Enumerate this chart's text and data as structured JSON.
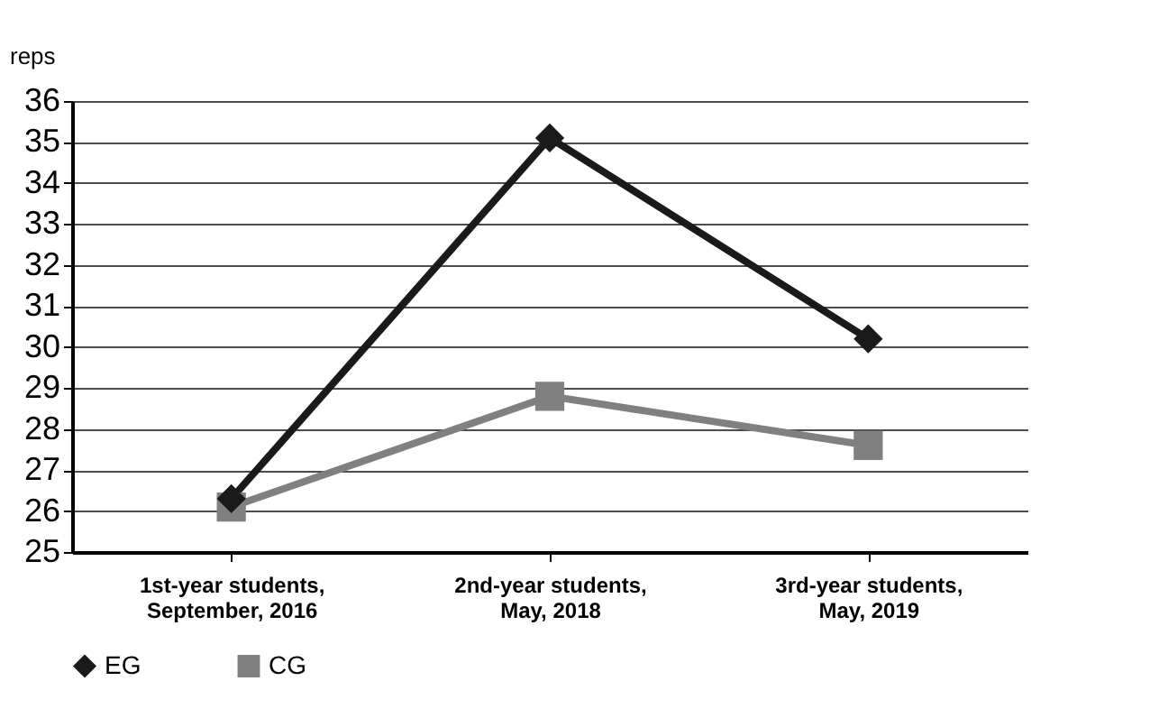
{
  "chart_data": {
    "type": "line",
    "ylabel": "reps",
    "categories": [
      "1st-year students,\nSeptember, 2016",
      "2nd-year students,\nMay, 2018",
      "3rd-year students,\nMay, 2019"
    ],
    "series": [
      {
        "name": "EG",
        "color": "#1a1a1a",
        "marker": "diamond",
        "values": [
          26.3,
          35.1,
          30.2
        ]
      },
      {
        "name": "CG",
        "color": "#808080",
        "marker": "square",
        "values": [
          26.1,
          28.8,
          27.6
        ]
      }
    ],
    "ylim": [
      25,
      36
    ],
    "yticks": [
      25,
      26,
      27,
      28,
      29,
      30,
      31,
      32,
      33,
      34,
      35,
      36
    ],
    "grid": "y",
    "legend": "bottom",
    "line_style": "solid"
  }
}
